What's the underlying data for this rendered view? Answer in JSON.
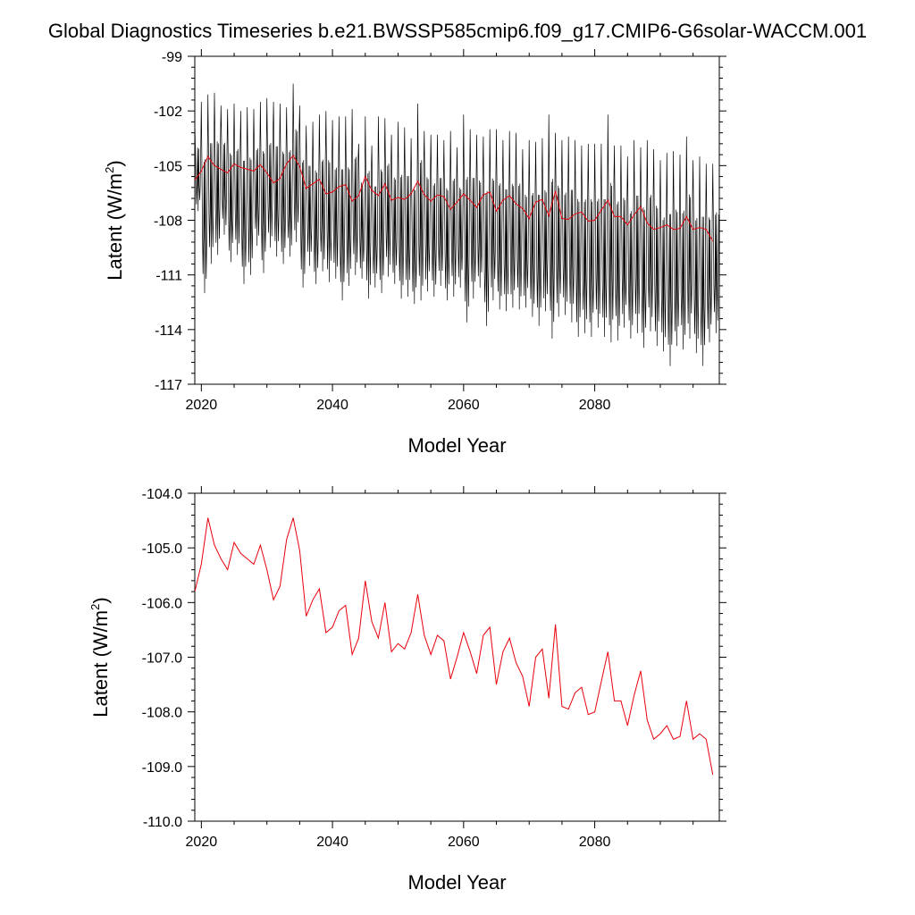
{
  "title": "Global Diagnostics Timeseries b.e21.BWSSP585cmip6.f09_g17.CMIP6-G6solar-WACCM.001",
  "colors": {
    "monthly": "#000000",
    "annual": "#e8000b",
    "axes": "#000000"
  },
  "chart_data": [
    {
      "type": "line",
      "xlabel": "Model Year",
      "ylabel": {
        "main": "Latent (W/m",
        "sup": "2",
        "close": ")"
      },
      "xlim": [
        2019,
        2099
      ],
      "ylim": [
        -117,
        -99
      ],
      "xticks": [
        2020,
        2040,
        2060,
        2080
      ],
      "xtick_labels": [
        "2020",
        "2040",
        "2060",
        "2080"
      ],
      "yticks": [
        -99,
        -102,
        -105,
        -108,
        -111,
        -114,
        -117
      ],
      "ytick_labels": [
        "-99",
        "-102",
        "-105",
        "-108",
        "-111",
        "-114",
        "-117"
      ],
      "grid": false,
      "monthly_envelope": {
        "note_units": "W/m2",
        "x_start": 2019,
        "months_per_year": 12,
        "years": [
          2019,
          2020,
          2021,
          2022,
          2023,
          2024,
          2025,
          2026,
          2027,
          2028,
          2029,
          2030,
          2031,
          2032,
          2033,
          2034,
          2035,
          2036,
          2037,
          2038,
          2039,
          2040,
          2041,
          2042,
          2043,
          2044,
          2045,
          2046,
          2047,
          2048,
          2049,
          2050,
          2051,
          2052,
          2053,
          2054,
          2055,
          2056,
          2057,
          2058,
          2059,
          2060,
          2061,
          2062,
          2063,
          2064,
          2065,
          2066,
          2067,
          2068,
          2069,
          2070,
          2071,
          2072,
          2073,
          2074,
          2075,
          2076,
          2077,
          2078,
          2079,
          2080,
          2081,
          2082,
          2083,
          2084,
          2085,
          2086,
          2087,
          2088,
          2089,
          2090,
          2091,
          2092,
          2093,
          2094,
          2095,
          2096,
          2097,
          2098
        ],
        "max": [
          -102.6,
          -101.5,
          -101.1,
          -101.0,
          -101.7,
          -101.9,
          -101.6,
          -102.0,
          -101.8,
          -101.9,
          -101.5,
          -101.3,
          -101.5,
          -101.6,
          -101.8,
          -100.5,
          -101.7,
          -102.8,
          -102.6,
          -102.2,
          -102.0,
          -102.5,
          -102.3,
          -102.3,
          -101.9,
          -103.8,
          -102.3,
          -103.9,
          -102.3,
          -102.4,
          -103.3,
          -102.6,
          -102.9,
          -103.5,
          -101.6,
          -103.1,
          -103.3,
          -103.3,
          -103.6,
          -103.1,
          -104.0,
          -102.2,
          -103.0,
          -103.3,
          -103.4,
          -103.0,
          -103.0,
          -103.6,
          -103.1,
          -103.2,
          -104.1,
          -103.6,
          -103.7,
          -103.5,
          -102.2,
          -103.2,
          -103.6,
          -103.4,
          -103.6,
          -103.9,
          -103.8,
          -103.8,
          -103.8,
          -102.2,
          -103.9,
          -103.9,
          -104.5,
          -103.6,
          -104.0,
          -103.6,
          -104.1,
          -104.7,
          -104.3,
          -104.2,
          -104.4,
          -103.4,
          -104.7,
          -104.5,
          -104.9,
          -104.9
        ],
        "min": [
          -107.5,
          -112.0,
          -110.4,
          -109.9,
          -108.8,
          -110.3,
          -109.9,
          -111.5,
          -111.0,
          -109.4,
          -110.9,
          -109.5,
          -110.0,
          -110.4,
          -110.0,
          -109.2,
          -111.7,
          -110.5,
          -111.5,
          -110.8,
          -111.4,
          -111.2,
          -112.4,
          -111.6,
          -111.0,
          -111.2,
          -112.3,
          -111.7,
          -112.0,
          -111.1,
          -111.5,
          -112.3,
          -112.2,
          -112.6,
          -112.4,
          -111.9,
          -112.2,
          -111.6,
          -112.4,
          -112.2,
          -111.7,
          -113.6,
          -112.3,
          -111.7,
          -113.8,
          -112.4,
          -112.9,
          -113.0,
          -112.8,
          -112.9,
          -112.8,
          -113.3,
          -113.8,
          -113.0,
          -114.5,
          -113.3,
          -113.2,
          -113.6,
          -114.4,
          -114.2,
          -114.4,
          -113.9,
          -114.4,
          -114.7,
          -114.6,
          -113.9,
          -114.5,
          -114.2,
          -115.0,
          -114.1,
          -114.9,
          -115.2,
          -116.0,
          -114.9,
          -115.1,
          -114.5,
          -115.3,
          -116.0,
          -114.7,
          -114.2
        ]
      },
      "annual_series": {
        "name": "annual",
        "x": [
          2019,
          2020,
          2021,
          2022,
          2023,
          2024,
          2025,
          2026,
          2027,
          2028,
          2029,
          2030,
          2031,
          2032,
          2033,
          2034,
          2035,
          2036,
          2037,
          2038,
          2039,
          2040,
          2041,
          2042,
          2043,
          2044,
          2045,
          2046,
          2047,
          2048,
          2049,
          2050,
          2051,
          2052,
          2053,
          2054,
          2055,
          2056,
          2057,
          2058,
          2059,
          2060,
          2061,
          2062,
          2063,
          2064,
          2065,
          2066,
          2067,
          2068,
          2069,
          2070,
          2071,
          2072,
          2073,
          2074,
          2075,
          2076,
          2077,
          2078,
          2079,
          2080,
          2081,
          2082,
          2083,
          2084,
          2085,
          2086,
          2087,
          2088,
          2089,
          2090,
          2091,
          2092,
          2093,
          2094,
          2095,
          2096,
          2097,
          2098
        ],
        "y": [
          -105.8,
          -105.3,
          -104.5,
          -105.0,
          -105.2,
          -105.4,
          -104.9,
          -105.1,
          -105.2,
          -105.3,
          -104.95,
          -105.4,
          -105.95,
          -105.7,
          -104.9,
          -104.45,
          -105.05,
          -106.25,
          -106.0,
          -105.75,
          -106.55,
          -106.45,
          -106.15,
          -106.05,
          -106.95,
          -106.65,
          -105.6,
          -106.35,
          -106.65,
          -106.0,
          -106.9,
          -106.75,
          -106.85,
          -106.55,
          -105.85,
          -106.6,
          -106.95,
          -106.6,
          -106.7,
          -107.4,
          -107.0,
          -106.55,
          -106.9,
          -107.3,
          -106.6,
          -106.45,
          -107.5,
          -106.9,
          -106.65,
          -107.1,
          -107.35,
          -107.9,
          -107.0,
          -106.85,
          -107.75,
          -106.4,
          -107.9,
          -107.95,
          -107.65,
          -107.55,
          -108.05,
          -108.0,
          -107.45,
          -106.9,
          -107.8,
          -107.8,
          -108.25,
          -107.7,
          -107.25,
          -108.15,
          -108.5,
          -108.4,
          -108.25,
          -108.5,
          -108.45,
          -107.8,
          -108.5,
          -108.4,
          -108.5,
          -109.15
        ]
      }
    },
    {
      "type": "line",
      "xlabel": "Model Year",
      "ylabel": {
        "main": "Latent (W/m",
        "sup": "2",
        "close": ")"
      },
      "xlim": [
        2019,
        2099
      ],
      "ylim": [
        -110.0,
        -104.0
      ],
      "xticks": [
        2020,
        2040,
        2060,
        2080
      ],
      "xtick_labels": [
        "2020",
        "2040",
        "2060",
        "2080"
      ],
      "yticks": [
        -104.0,
        -105.0,
        -106.0,
        -107.0,
        -108.0,
        -109.0,
        -110.0
      ],
      "ytick_labels": [
        "-104.0",
        "-105.0",
        "-106.0",
        "-107.0",
        "-108.0",
        "-109.0",
        "-110.0"
      ],
      "grid": false,
      "annual_series": {
        "name": "annual",
        "x": [
          2019,
          2020,
          2021,
          2022,
          2023,
          2024,
          2025,
          2026,
          2027,
          2028,
          2029,
          2030,
          2031,
          2032,
          2033,
          2034,
          2035,
          2036,
          2037,
          2038,
          2039,
          2040,
          2041,
          2042,
          2043,
          2044,
          2045,
          2046,
          2047,
          2048,
          2049,
          2050,
          2051,
          2052,
          2053,
          2054,
          2055,
          2056,
          2057,
          2058,
          2059,
          2060,
          2061,
          2062,
          2063,
          2064,
          2065,
          2066,
          2067,
          2068,
          2069,
          2070,
          2071,
          2072,
          2073,
          2074,
          2075,
          2076,
          2077,
          2078,
          2079,
          2080,
          2081,
          2082,
          2083,
          2084,
          2085,
          2086,
          2087,
          2088,
          2089,
          2090,
          2091,
          2092,
          2093,
          2094,
          2095,
          2096,
          2097,
          2098
        ],
        "y": [
          -105.8,
          -105.3,
          -104.45,
          -104.95,
          -105.2,
          -105.4,
          -104.9,
          -105.1,
          -105.2,
          -105.3,
          -104.95,
          -105.4,
          -105.95,
          -105.7,
          -104.85,
          -104.45,
          -105.05,
          -106.25,
          -105.95,
          -105.75,
          -106.55,
          -106.45,
          -106.15,
          -106.05,
          -106.95,
          -106.65,
          -105.6,
          -106.35,
          -106.65,
          -106.0,
          -106.9,
          -106.75,
          -106.85,
          -106.55,
          -105.85,
          -106.6,
          -106.95,
          -106.6,
          -106.7,
          -107.4,
          -107.0,
          -106.55,
          -106.9,
          -107.3,
          -106.6,
          -106.45,
          -107.5,
          -106.9,
          -106.65,
          -107.1,
          -107.35,
          -107.9,
          -107.0,
          -106.85,
          -107.75,
          -106.4,
          -107.9,
          -107.95,
          -107.65,
          -107.55,
          -108.05,
          -108.0,
          -107.45,
          -106.9,
          -107.8,
          -107.8,
          -108.25,
          -107.7,
          -107.25,
          -108.15,
          -108.5,
          -108.4,
          -108.25,
          -108.5,
          -108.45,
          -107.8,
          -108.5,
          -108.4,
          -108.5,
          -109.15
        ]
      }
    }
  ]
}
